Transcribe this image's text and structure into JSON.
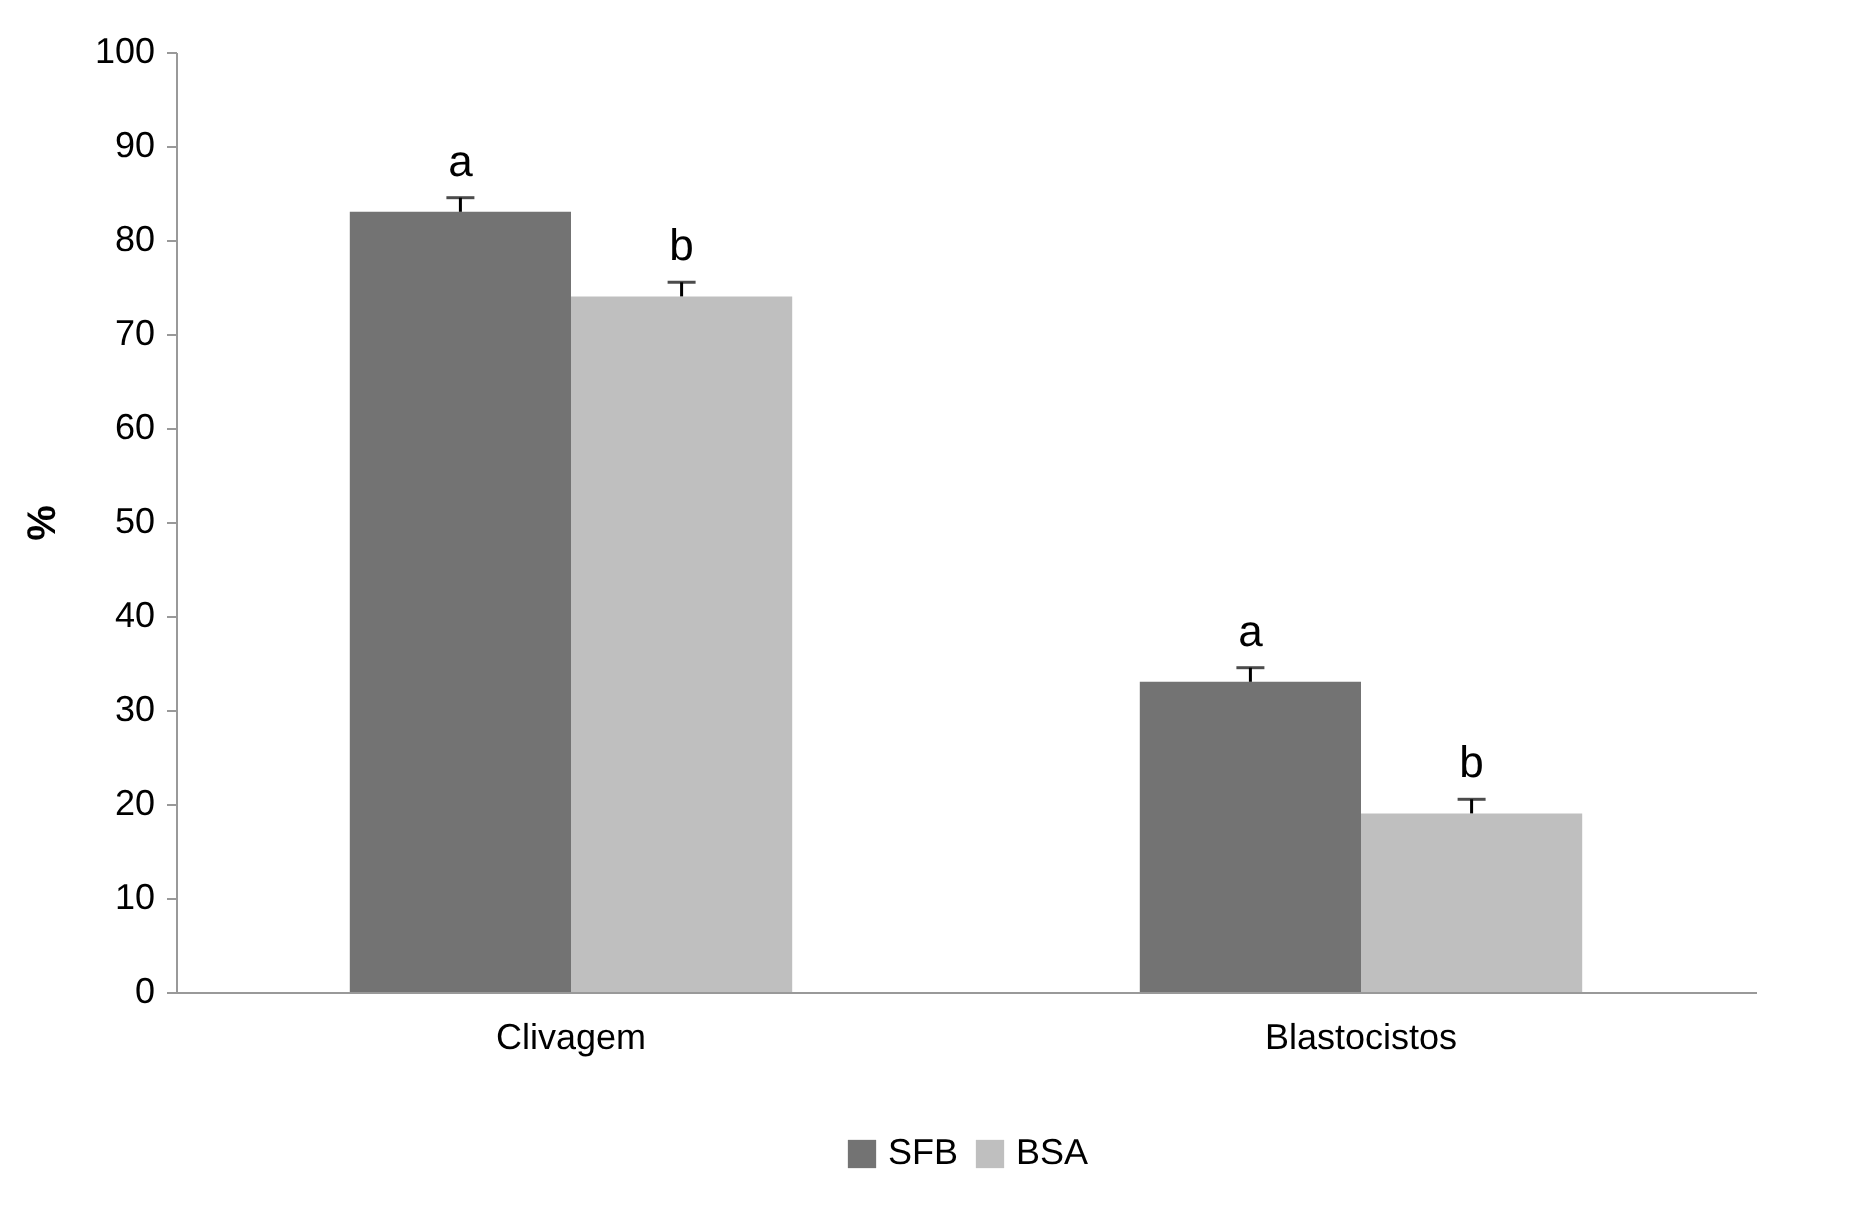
{
  "chart_data": {
    "type": "bar",
    "ylabel": "%",
    "categories": [
      "Clivagem",
      "Blastocistos"
    ],
    "series": [
      {
        "name": "SFB",
        "color": "#737373",
        "values": [
          83,
          33
        ],
        "errors": [
          1.5,
          1.5
        ],
        "value_labels": [
          "a",
          "a"
        ]
      },
      {
        "name": "BSA",
        "color": "#bfbfbf",
        "values": [
          74,
          19
        ],
        "errors": [
          1.5,
          1.5
        ],
        "value_labels": [
          "b",
          "b"
        ]
      }
    ],
    "ylim": [
      0,
      100
    ],
    "yticks": [
      0,
      10,
      20,
      30,
      40,
      50,
      60,
      70,
      80,
      90,
      100
    ],
    "grid": false,
    "legend": "bottom"
  }
}
